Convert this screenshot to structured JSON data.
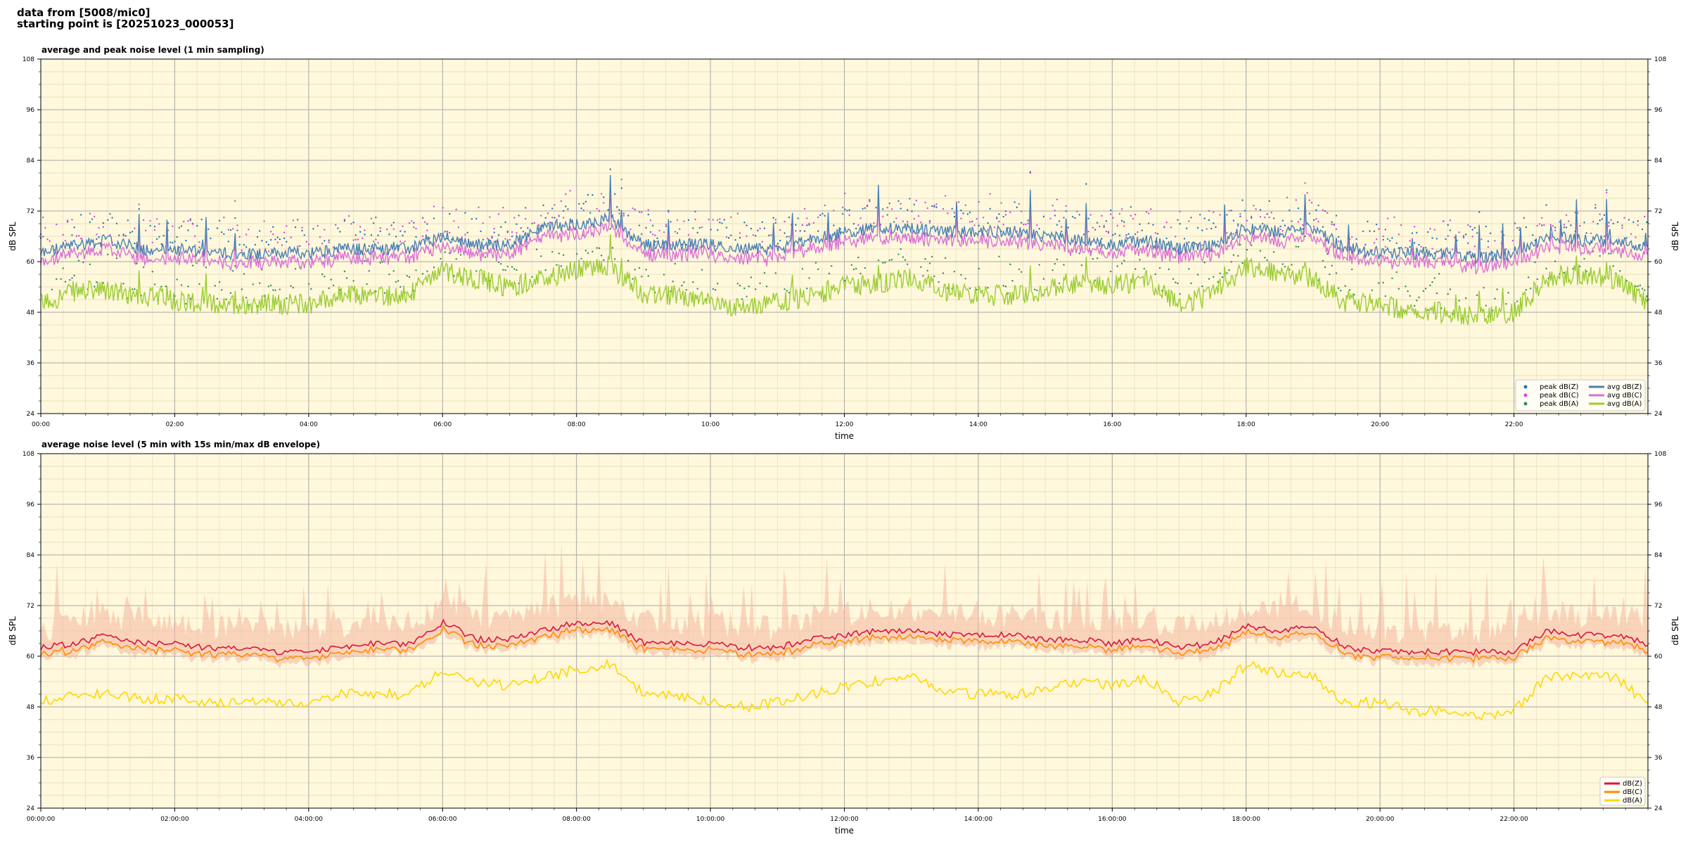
{
  "header": {
    "line1": "data from [5008/mic0]",
    "line2": "starting point is [20251023_000053]"
  },
  "colors": {
    "plot_bg": "#fff8dc",
    "peak_z": "#1f77b4",
    "peak_c": "#e040e0",
    "peak_a": "#2e8b57",
    "avg_z": "#4a7fb5",
    "avg_c": "#da70d6",
    "avg_a": "#9acd32",
    "dbz": "#dc143c",
    "dbc": "#ff8c00",
    "dba": "#ffd700",
    "envelope": "#f4b6a0"
  },
  "chart_data": [
    {
      "type": "line",
      "title": "average and peak noise level (1 min sampling)",
      "xlabel": "time",
      "ylabel": "dB SPL",
      "x_ticks": [
        "00:00",
        "02:00",
        "04:00",
        "06:00",
        "08:00",
        "10:00",
        "12:00",
        "14:00",
        "16:00",
        "18:00",
        "20:00",
        "22:00"
      ],
      "y_ticks": [
        "24",
        "36",
        "48",
        "60",
        "72",
        "84",
        "96",
        "108"
      ],
      "x_range_hours": [
        0,
        24
      ],
      "ylim": [
        24,
        108
      ],
      "grid": true,
      "legend_position": "bottom-right",
      "legend": [
        {
          "label": "peak dB(Z)",
          "kind": "dot",
          "color": "#1f77b4"
        },
        {
          "label": "peak dB(C)",
          "kind": "dot",
          "color": "#e040e0"
        },
        {
          "label": "peak dB(A)",
          "kind": "dot",
          "color": "#2e8b57"
        },
        {
          "label": "avg dB(Z)",
          "kind": "line",
          "color": "#4a7fb5"
        },
        {
          "label": "avg dB(C)",
          "kind": "line",
          "color": "#da70d6"
        },
        {
          "label": "avg dB(A)",
          "kind": "line",
          "color": "#9acd32"
        }
      ],
      "series_profile": {
        "hours": [
          0,
          0.5,
          1,
          1.5,
          2,
          2.5,
          3,
          3.5,
          4,
          4.5,
          5,
          5.5,
          6,
          6.5,
          7,
          7.5,
          8,
          8.5,
          9,
          9.5,
          10,
          10.5,
          11,
          11.5,
          12,
          12.5,
          13,
          13.5,
          14,
          14.5,
          15,
          15.5,
          16,
          16.5,
          17,
          17.5,
          18,
          18.5,
          19,
          19.5,
          20,
          20.5,
          21,
          21.5,
          22,
          22.5,
          23,
          23.5,
          24
        ],
        "avg_dBZ": [
          62,
          64,
          65,
          63,
          63,
          62,
          62,
          62,
          62,
          63,
          63,
          63,
          66,
          64,
          64,
          68,
          69,
          70,
          64,
          64,
          64,
          63,
          63,
          65,
          67,
          68,
          68,
          67,
          67,
          67,
          66,
          65,
          64,
          65,
          63,
          64,
          68,
          67,
          68,
          63,
          62,
          62,
          62,
          61,
          62,
          66,
          65,
          65,
          63
        ],
        "avg_dBA": [
          50,
          53,
          53,
          52,
          51,
          50,
          50,
          50,
          50,
          52,
          52,
          52,
          58,
          56,
          54,
          56,
          58,
          59,
          52,
          52,
          50,
          49,
          50,
          52,
          54,
          55,
          56,
          53,
          52,
          52,
          53,
          55,
          54,
          56,
          50,
          52,
          59,
          57,
          56,
          50,
          50,
          48,
          48,
          47,
          48,
          56,
          57,
          56,
          50
        ]
      }
    },
    {
      "type": "line",
      "title": "average noise level (5 min with 15s min/max dB envelope)",
      "xlabel": "time",
      "ylabel": "dB SPL",
      "x_ticks": [
        "00:00:00",
        "02:00:00",
        "04:00:00",
        "06:00:00",
        "08:00:00",
        "10:00:00",
        "12:00:00",
        "14:00:00",
        "16:00:00",
        "18:00:00",
        "20:00:00",
        "22:00:00"
      ],
      "y_ticks": [
        "24",
        "36",
        "48",
        "60",
        "72",
        "84",
        "96",
        "108"
      ],
      "x_range_hours": [
        0,
        24
      ],
      "ylim": [
        24,
        108
      ],
      "grid": true,
      "legend_position": "bottom-right",
      "legend": [
        {
          "label": "dB(Z)",
          "kind": "line",
          "color": "#dc143c"
        },
        {
          "label": "dB(C)",
          "kind": "line",
          "color": "#ff8c00"
        },
        {
          "label": "dB(A)",
          "kind": "line",
          "color": "#ffd700"
        }
      ],
      "series_profile": {
        "hours": [
          0,
          0.5,
          1,
          1.5,
          2,
          2.5,
          3,
          3.5,
          4,
          4.5,
          5,
          5.5,
          6,
          6.5,
          7,
          7.5,
          8,
          8.5,
          9,
          9.5,
          10,
          10.5,
          11,
          11.5,
          12,
          12.5,
          13,
          13.5,
          14,
          14.5,
          15,
          15.5,
          16,
          16.5,
          17,
          17.5,
          18,
          18.5,
          19,
          19.5,
          20,
          20.5,
          21,
          21.5,
          22,
          22.5,
          23,
          23.5,
          24
        ],
        "dBZ": [
          62,
          63,
          65,
          63,
          63,
          62,
          62,
          61,
          61,
          62,
          63,
          63,
          68,
          64,
          64,
          66,
          68,
          68,
          63,
          63,
          63,
          62,
          62,
          64,
          65,
          66,
          66,
          65,
          65,
          65,
          64,
          64,
          63,
          64,
          62,
          63,
          67,
          66,
          67,
          62,
          61,
          61,
          61,
          61,
          61,
          66,
          65,
          65,
          63
        ],
        "dBA": [
          49,
          51,
          51,
          50,
          50,
          49,
          49,
          49,
          49,
          51,
          51,
          51,
          57,
          54,
          53,
          55,
          57,
          58,
          51,
          51,
          49,
          48,
          49,
          51,
          53,
          54,
          55,
          52,
          51,
          51,
          52,
          54,
          53,
          55,
          49,
          51,
          58,
          56,
          55,
          49,
          49,
          47,
          47,
          46,
          47,
          55,
          56,
          55,
          49
        ]
      }
    }
  ]
}
